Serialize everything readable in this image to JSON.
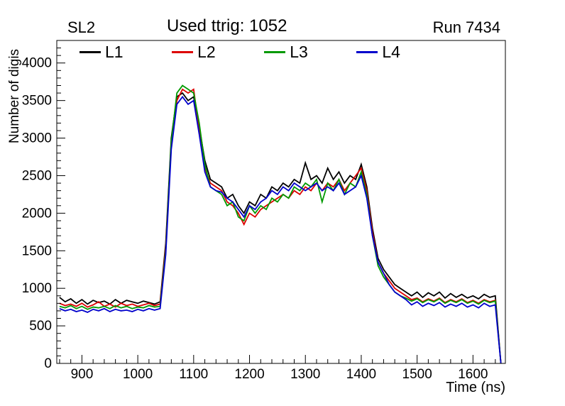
{
  "header": {
    "left_label": "SL2",
    "center_label": "Used ttrig: 1052",
    "right_label": "Run 7434"
  },
  "chart_data": {
    "type": "line",
    "title": "Used ttrig: 1052",
    "xlabel": "Time (ns)",
    "ylabel": "Number of digis",
    "xlim": [
      855,
      1658
    ],
    "ylim": [
      0,
      4300
    ],
    "x_ticks": [
      900,
      1000,
      1100,
      1200,
      1300,
      1400,
      1500,
      1600
    ],
    "y_ticks": [
      0,
      500,
      1000,
      1500,
      2000,
      2500,
      3000,
      3500,
      4000
    ],
    "x_minor_step": 20,
    "y_minor_step": 100,
    "grid": false,
    "legend_position": "top-inside",
    "x": [
      860,
      870,
      880,
      890,
      900,
      910,
      920,
      930,
      940,
      950,
      960,
      970,
      980,
      990,
      1000,
      1010,
      1020,
      1030,
      1040,
      1050,
      1060,
      1070,
      1080,
      1090,
      1100,
      1110,
      1120,
      1130,
      1140,
      1150,
      1160,
      1170,
      1180,
      1190,
      1200,
      1210,
      1220,
      1230,
      1240,
      1250,
      1260,
      1270,
      1280,
      1290,
      1300,
      1310,
      1320,
      1330,
      1340,
      1350,
      1360,
      1370,
      1380,
      1390,
      1400,
      1410,
      1420,
      1430,
      1440,
      1450,
      1460,
      1470,
      1480,
      1490,
      1500,
      1510,
      1520,
      1530,
      1540,
      1550,
      1560,
      1570,
      1580,
      1590,
      1600,
      1610,
      1620,
      1630,
      1640,
      1650
    ],
    "series": [
      {
        "name": "L1",
        "color": "#000000",
        "values": [
          880,
          820,
          860,
          800,
          850,
          790,
          840,
          810,
          830,
          790,
          850,
          800,
          840,
          820,
          800,
          830,
          810,
          790,
          820,
          1600,
          3000,
          3550,
          3600,
          3500,
          3550,
          3150,
          2700,
          2450,
          2400,
          2350,
          2200,
          2250,
          2100,
          2000,
          2150,
          2100,
          2250,
          2200,
          2350,
          2300,
          2400,
          2350,
          2450,
          2400,
          2670,
          2450,
          2500,
          2400,
          2600,
          2450,
          2550,
          2400,
          2500,
          2450,
          2650,
          2350,
          1800,
          1400,
          1250,
          1150,
          1050,
          1000,
          950,
          900,
          950,
          880,
          940,
          900,
          950,
          870,
          930,
          880,
          920,
          870,
          900,
          860,
          920,
          880,
          900,
          0
        ]
      },
      {
        "name": "L2",
        "color": "#dd0000",
        "values": [
          800,
          770,
          790,
          760,
          800,
          750,
          780,
          820,
          760,
          790,
          750,
          800,
          770,
          790,
          760,
          780,
          800,
          770,
          790,
          1550,
          2900,
          3500,
          3650,
          3600,
          3650,
          3100,
          2600,
          2400,
          2350,
          2300,
          2150,
          2100,
          2000,
          1850,
          2000,
          1950,
          2050,
          2100,
          2150,
          2200,
          2250,
          2200,
          2300,
          2250,
          2350,
          2300,
          2400,
          2300,
          2400,
          2350,
          2450,
          2300,
          2400,
          2500,
          2600,
          2300,
          1750,
          1350,
          1200,
          1100,
          1000,
          950,
          900,
          850,
          870,
          820,
          860,
          830,
          870,
          810,
          850,
          820,
          860,
          810,
          840,
          800,
          850,
          820,
          840,
          0
        ]
      },
      {
        "name": "L3",
        "color": "#009900",
        "values": [
          760,
          740,
          770,
          730,
          760,
          720,
          750,
          740,
          760,
          730,
          770,
          740,
          760,
          730,
          750,
          740,
          770,
          750,
          760,
          1500,
          2950,
          3600,
          3700,
          3650,
          3600,
          3200,
          2650,
          2350,
          2300,
          2250,
          2100,
          2150,
          1950,
          1900,
          2100,
          2000,
          2100,
          2050,
          2200,
          2150,
          2250,
          2200,
          2350,
          2300,
          2400,
          2350,
          2450,
          2150,
          2400,
          2300,
          2450,
          2250,
          2400,
          2350,
          2550,
          2250,
          1700,
          1300,
          1150,
          1050,
          950,
          900,
          870,
          830,
          860,
          810,
          850,
          820,
          860,
          800,
          840,
          810,
          850,
          800,
          830,
          790,
          840,
          810,
          830,
          0
        ]
      },
      {
        "name": "L4",
        "color": "#0000cc",
        "values": [
          730,
          700,
          720,
          690,
          710,
          680,
          720,
          700,
          730,
          690,
          720,
          700,
          710,
          690,
          720,
          700,
          730,
          710,
          730,
          1450,
          2850,
          3450,
          3550,
          3450,
          3500,
          3050,
          2550,
          2350,
          2300,
          2280,
          2200,
          2150,
          2050,
          1950,
          2100,
          2050,
          2150,
          2200,
          2300,
          2250,
          2350,
          2300,
          2400,
          2350,
          2300,
          2350,
          2400,
          2300,
          2350,
          2300,
          2400,
          2250,
          2300,
          2350,
          2500,
          2200,
          1700,
          1350,
          1200,
          1050,
          950,
          900,
          850,
          780,
          820,
          760,
          800,
          770,
          810,
          750,
          790,
          760,
          800,
          750,
          780,
          740,
          800,
          760,
          780,
          0
        ]
      }
    ]
  }
}
